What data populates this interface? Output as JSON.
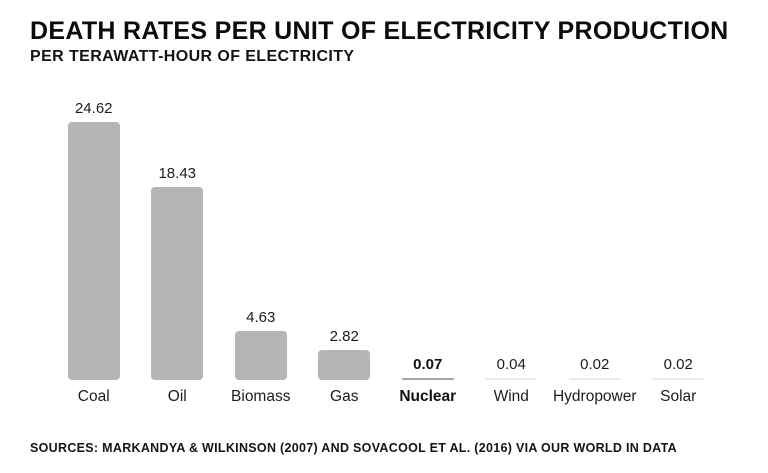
{
  "header": {
    "title": "DEATH RATES PER UNIT OF ELECTRICITY PRODUCTION",
    "subtitle": "PER TERAWATT-HOUR OF ELECTRICITY"
  },
  "footer": {
    "source": "SOURCES: MARKANDYA & WILKINSON (2007) AND SOVACOOL ET AL. (2016) VIA OUR WORLD IN DATA"
  },
  "chart_data": {
    "type": "bar",
    "title": "DEATH RATES PER UNIT OF ELECTRICITY PRODUCTION",
    "subtitle": "PER TERAWATT-HOUR OF ELECTRICITY",
    "categories": [
      "Coal",
      "Oil",
      "Biomass",
      "Gas",
      "Nuclear",
      "Wind",
      "Hydropower",
      "Solar"
    ],
    "values": [
      24.62,
      18.43,
      4.63,
      2.82,
      0.07,
      0.04,
      0.02,
      0.02
    ],
    "value_labels": [
      "24.62",
      "18.43",
      "4.63",
      "2.82",
      "0.07",
      "0.04",
      "0.02",
      "0.02"
    ],
    "highlighted_category": "Nuclear",
    "xlabel": "",
    "ylabel": "",
    "ylim": [
      0,
      27.2
    ],
    "grid": false,
    "legend": false,
    "axis_lines": false,
    "colors": {
      "bar": "#b5b5b5",
      "highlight_thin_bar": "#a6a6a6",
      "thin_bar": "#eaeaea",
      "text": "#1d1d1d",
      "background": "#ffffff"
    }
  }
}
